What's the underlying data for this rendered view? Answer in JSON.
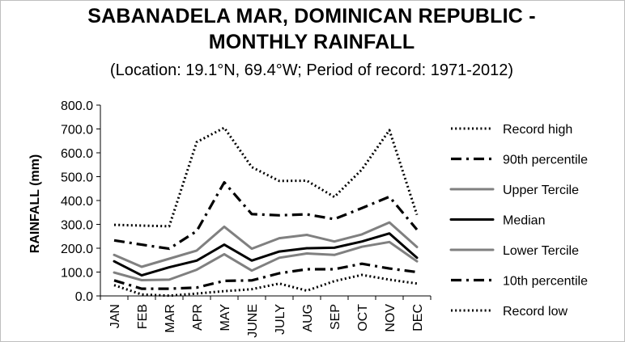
{
  "chart_data": {
    "type": "line",
    "title_line1": "SABANADELA MAR, DOMINICAN REPUBLIC -",
    "title_line2": "MONTHLY RAINFALL",
    "subtitle": "(Location: 19.1°N, 69.4°W; Period of record: 1971-2012)",
    "ylabel": "RAINFALL (mm)",
    "xlabel": "",
    "ylim": [
      0,
      800
    ],
    "yticks": [
      "0.0",
      "100.0",
      "200.0",
      "300.0",
      "400.0",
      "500.0",
      "600.0",
      "700.0",
      "800.0"
    ],
    "categories": [
      "JAN",
      "FEB",
      "MAR",
      "APR",
      "MAY",
      "JUNE",
      "JULY",
      "AUG",
      "SEP",
      "OCT",
      "NOV",
      "DEC"
    ],
    "legend_position": "right",
    "grid": false,
    "series": [
      {
        "name": "Record high",
        "style": "dotted",
        "color": "#000000",
        "values": [
          298,
          295,
          292,
          645,
          705,
          540,
          482,
          483,
          415,
          530,
          695,
          340
        ]
      },
      {
        "name": "90th percentile",
        "style": "dashdot",
        "color": "#000000",
        "values": [
          233,
          215,
          198,
          272,
          476,
          343,
          338,
          342,
          322,
          368,
          416,
          278
        ]
      },
      {
        "name": "Upper Tercile",
        "style": "solid-gray",
        "color": "#808080",
        "values": [
          172,
          122,
          156,
          190,
          290,
          198,
          242,
          256,
          228,
          258,
          308,
          205
        ]
      },
      {
        "name": "Median",
        "style": "solid-black",
        "color": "#000000",
        "values": [
          145,
          86,
          120,
          148,
          215,
          148,
          186,
          200,
          202,
          228,
          262,
          160
        ]
      },
      {
        "name": "Lower Tercile",
        "style": "solid-gray",
        "color": "#808080",
        "values": [
          98,
          66,
          68,
          110,
          175,
          106,
          160,
          178,
          172,
          206,
          226,
          145
        ]
      },
      {
        "name": "10th percentile",
        "style": "dashdot",
        "color": "#000000",
        "values": [
          65,
          30,
          30,
          35,
          63,
          65,
          95,
          112,
          112,
          135,
          115,
          100
        ]
      },
      {
        "name": "Record low",
        "style": "dotted",
        "color": "#000000",
        "values": [
          45,
          6,
          1,
          10,
          20,
          28,
          52,
          22,
          62,
          88,
          68,
          52
        ]
      }
    ]
  }
}
